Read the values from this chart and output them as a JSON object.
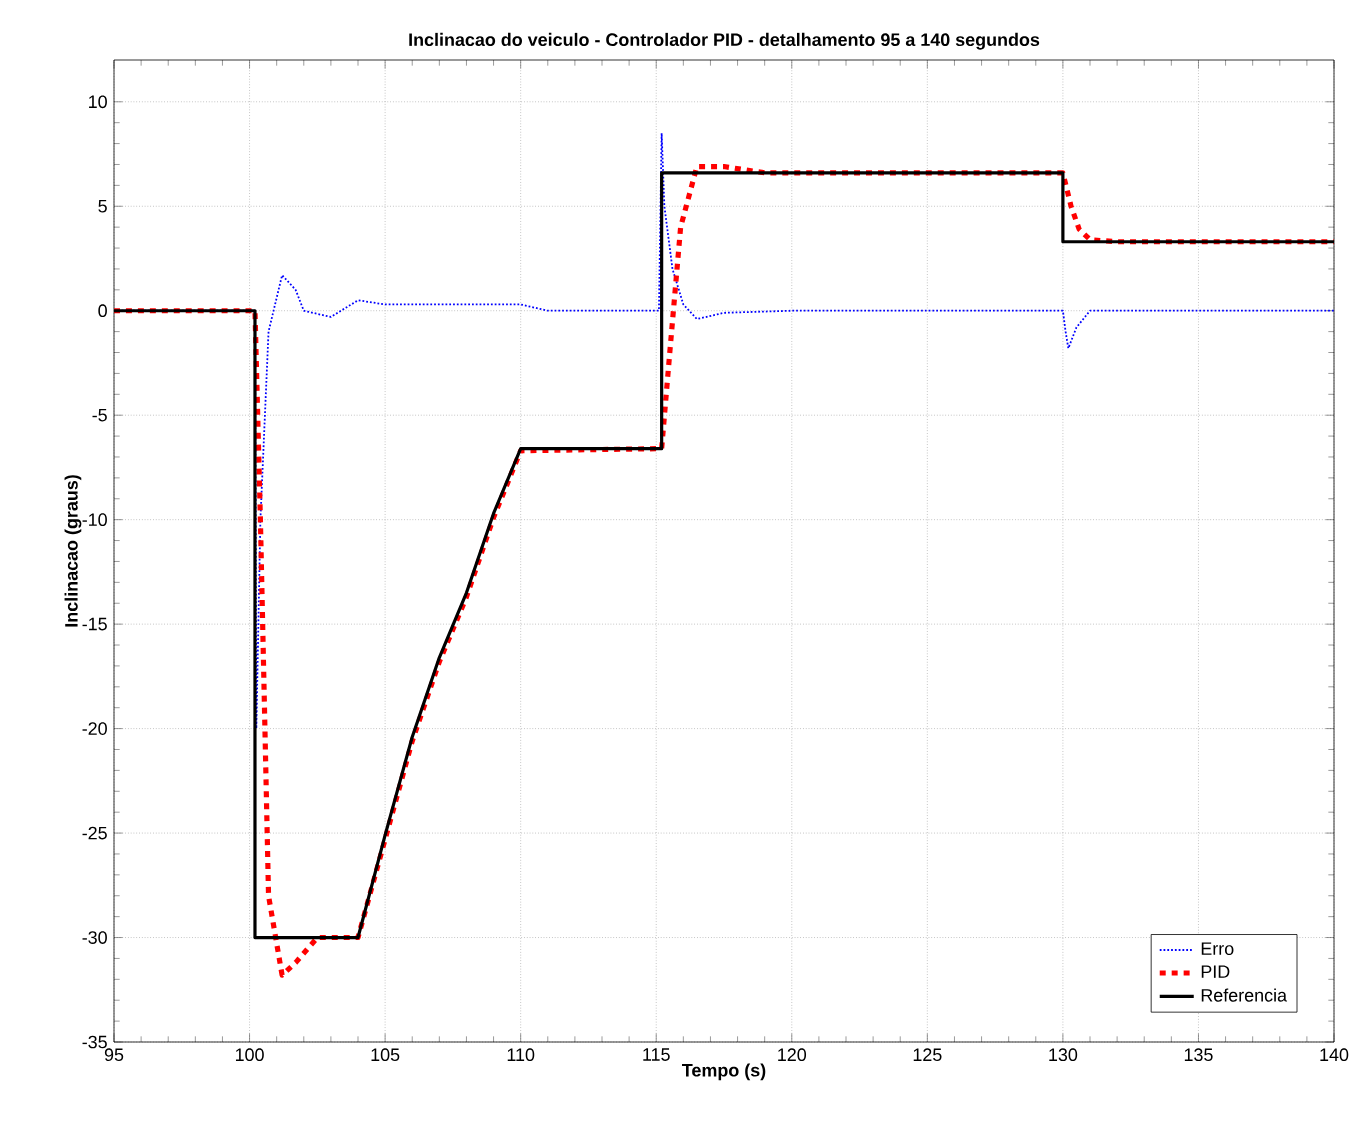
{
  "chart_data": {
    "type": "line",
    "title": "Inclinacao do veiculo - Controlador PID - detalhamento 95 a 140 segundos",
    "xlabel": "Tempo (s)",
    "ylabel": "Inclinacao (graus)",
    "xlim": [
      95,
      140
    ],
    "ylim": [
      -35,
      12
    ],
    "xticks": [
      95,
      100,
      105,
      110,
      115,
      120,
      125,
      130,
      135,
      140
    ],
    "yticks": [
      -35,
      -30,
      -25,
      -20,
      -15,
      -10,
      -5,
      0,
      5,
      10
    ],
    "grid": true,
    "legend": "bottom right",
    "marker": "none",
    "series": [
      {
        "name": "Erro",
        "color": "#0000ff",
        "line_style": "dotted",
        "x": [
          95,
          100.2,
          100.25,
          100.4,
          100.7,
          101.2,
          101.7,
          102,
          103,
          104,
          105,
          110,
          111,
          115.1,
          115.2,
          115.3,
          115.6,
          116,
          116.5,
          117.5,
          120,
          130,
          130.1,
          130.2,
          130.5,
          131,
          140
        ],
        "values": [
          0,
          0,
          -20,
          -10,
          -1,
          1.7,
          1,
          0,
          -0.3,
          0.5,
          0.3,
          0.3,
          0,
          0,
          8.5,
          5,
          2,
          0.3,
          -0.4,
          -0.1,
          0,
          0,
          -1,
          -1.8,
          -0.8,
          0,
          0
        ]
      },
      {
        "name": "PID",
        "color": "#ff0000",
        "line_style": "dashed",
        "x": [
          95,
          100.2,
          100.4,
          100.7,
          101.2,
          101.7,
          102.5,
          104,
          105,
          106,
          107,
          108,
          109,
          110,
          115.2,
          115.5,
          115.9,
          116.5,
          117.5,
          119,
          130,
          130.3,
          130.6,
          131,
          132,
          140
        ],
        "values": [
          0,
          0,
          -10,
          -28,
          -31.8,
          -31.2,
          -30,
          -30,
          -25.3,
          -20.6,
          -16.8,
          -13.7,
          -9.9,
          -6.7,
          -6.6,
          -2,
          4,
          6.9,
          6.9,
          6.6,
          6.6,
          5,
          3.9,
          3.4,
          3.3,
          3.3
        ]
      },
      {
        "name": "Referencia",
        "color": "#000000",
        "line_style": "solid",
        "x": [
          95,
          100.2,
          100.2,
          104,
          105,
          106,
          107,
          108,
          109,
          110,
          115.2,
          115.2,
          130,
          130,
          140
        ],
        "values": [
          0,
          0,
          -30,
          -30,
          -25.1,
          -20.4,
          -16.6,
          -13.5,
          -9.7,
          -6.6,
          -6.6,
          6.6,
          6.6,
          3.3,
          3.3
        ]
      }
    ]
  }
}
